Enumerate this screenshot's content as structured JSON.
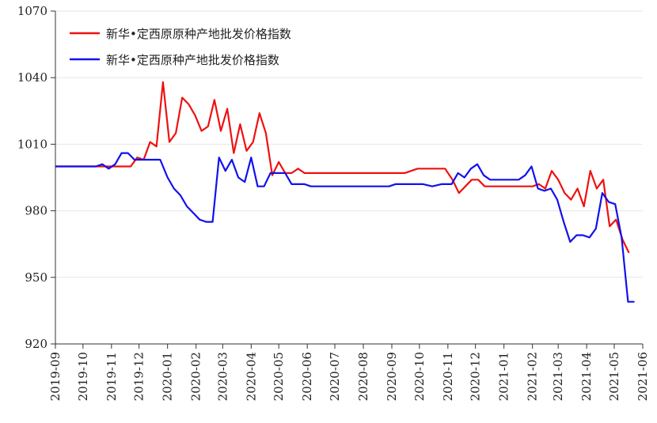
{
  "chart_data": {
    "type": "line",
    "title": "",
    "xlabel": "",
    "ylabel": "",
    "ylim": [
      920,
      1070
    ],
    "yticks": [
      920,
      950,
      980,
      1010,
      1040,
      1070
    ],
    "xlim": [
      "2019-09-01",
      "2021-06-01"
    ],
    "xticks": [
      "2019-09",
      "2019-10",
      "2019-11",
      "2019-12",
      "2020-01",
      "2020-02",
      "2020-03",
      "2020-04",
      "2020-05",
      "2020-06",
      "2020-07",
      "2020-08",
      "2020-09",
      "2020-10",
      "2020-11",
      "2020-12",
      "2021-01",
      "2021-02",
      "2021-03",
      "2021-04",
      "2021-05",
      "2021-06"
    ],
    "grid": "horizontal",
    "legend_position": "top-left",
    "series": [
      {
        "name": "新华•定西原原种产地批发价格指数",
        "color": "#ee1111",
        "points": [
          [
            "2019-09-01",
            1000
          ],
          [
            "2019-09-15",
            1000
          ],
          [
            "2019-10-01",
            1000
          ],
          [
            "2019-10-15",
            1000
          ],
          [
            "2019-11-01",
            1000
          ],
          [
            "2019-11-15",
            1000
          ],
          [
            "2019-11-22",
            1000
          ],
          [
            "2019-11-29",
            1004
          ],
          [
            "2019-12-06",
            1003
          ],
          [
            "2019-12-13",
            1011
          ],
          [
            "2019-12-20",
            1009
          ],
          [
            "2019-12-27",
            1038
          ],
          [
            "2020-01-03",
            1011
          ],
          [
            "2020-01-10",
            1015
          ],
          [
            "2020-01-17",
            1031
          ],
          [
            "2020-01-24",
            1028
          ],
          [
            "2020-01-31",
            1023
          ],
          [
            "2020-02-07",
            1016
          ],
          [
            "2020-02-14",
            1018
          ],
          [
            "2020-02-21",
            1030
          ],
          [
            "2020-02-28",
            1016
          ],
          [
            "2020-03-06",
            1026
          ],
          [
            "2020-03-13",
            1006
          ],
          [
            "2020-03-20",
            1019
          ],
          [
            "2020-03-27",
            1007
          ],
          [
            "2020-04-03",
            1011
          ],
          [
            "2020-04-10",
            1024
          ],
          [
            "2020-04-17",
            1015
          ],
          [
            "2020-04-24",
            996
          ],
          [
            "2020-05-01",
            1002
          ],
          [
            "2020-05-08",
            997
          ],
          [
            "2020-05-15",
            997
          ],
          [
            "2020-05-22",
            999
          ],
          [
            "2020-05-29",
            997
          ],
          [
            "2020-07-01",
            997
          ],
          [
            "2020-08-01",
            997
          ],
          [
            "2020-09-01",
            997
          ],
          [
            "2020-09-15",
            997
          ],
          [
            "2020-09-29",
            999
          ],
          [
            "2020-10-15",
            999
          ],
          [
            "2020-10-29",
            999
          ],
          [
            "2020-11-06",
            994
          ],
          [
            "2020-11-13",
            988
          ],
          [
            "2020-11-20",
            991
          ],
          [
            "2020-11-27",
            994
          ],
          [
            "2020-12-04",
            994
          ],
          [
            "2020-12-11",
            991
          ],
          [
            "2020-12-25",
            991
          ],
          [
            "2021-01-10",
            991
          ],
          [
            "2021-01-24",
            991
          ],
          [
            "2021-02-01",
            991
          ],
          [
            "2021-02-08",
            992
          ],
          [
            "2021-02-15",
            990
          ],
          [
            "2021-02-22",
            998
          ],
          [
            "2021-03-01",
            994
          ],
          [
            "2021-03-08",
            988
          ],
          [
            "2021-03-15",
            985
          ],
          [
            "2021-03-22",
            990
          ],
          [
            "2021-03-29",
            982
          ],
          [
            "2021-04-05",
            998
          ],
          [
            "2021-04-12",
            990
          ],
          [
            "2021-04-19",
            994
          ],
          [
            "2021-04-26",
            973
          ],
          [
            "2021-05-03",
            976
          ],
          [
            "2021-05-10",
            967
          ],
          [
            "2021-05-17",
            961
          ]
        ]
      },
      {
        "name": "新华•定西原种产地批发价格指数",
        "color": "#1111ee",
        "points": [
          [
            "2019-09-01",
            1000
          ],
          [
            "2019-09-15",
            1000
          ],
          [
            "2019-10-01",
            1000
          ],
          [
            "2019-10-15",
            1000
          ],
          [
            "2019-10-22",
            1001
          ],
          [
            "2019-10-29",
            999
          ],
          [
            "2019-11-05",
            1001
          ],
          [
            "2019-11-12",
            1006
          ],
          [
            "2019-11-19",
            1006
          ],
          [
            "2019-11-26",
            1003
          ],
          [
            "2019-12-10",
            1003
          ],
          [
            "2019-12-24",
            1003
          ],
          [
            "2020-01-01",
            995
          ],
          [
            "2020-01-08",
            990
          ],
          [
            "2020-01-15",
            987
          ],
          [
            "2020-01-22",
            982
          ],
          [
            "2020-01-29",
            979
          ],
          [
            "2020-02-05",
            976
          ],
          [
            "2020-02-12",
            975
          ],
          [
            "2020-02-19",
            975
          ],
          [
            "2020-02-26",
            1004
          ],
          [
            "2020-03-04",
            998
          ],
          [
            "2020-03-11",
            1003
          ],
          [
            "2020-03-18",
            995
          ],
          [
            "2020-03-25",
            993
          ],
          [
            "2020-04-01",
            1004
          ],
          [
            "2020-04-08",
            991
          ],
          [
            "2020-04-15",
            991
          ],
          [
            "2020-04-22",
            997
          ],
          [
            "2020-04-29",
            997
          ],
          [
            "2020-05-08",
            997
          ],
          [
            "2020-05-15",
            992
          ],
          [
            "2020-05-29",
            992
          ],
          [
            "2020-06-05",
            991
          ],
          [
            "2020-07-01",
            991
          ],
          [
            "2020-08-01",
            991
          ],
          [
            "2020-08-29",
            991
          ],
          [
            "2020-09-05",
            992
          ],
          [
            "2020-09-20",
            992
          ],
          [
            "2020-10-05",
            992
          ],
          [
            "2020-10-15",
            991
          ],
          [
            "2020-10-25",
            992
          ],
          [
            "2020-11-05",
            992
          ],
          [
            "2020-11-12",
            997
          ],
          [
            "2020-11-19",
            995
          ],
          [
            "2020-11-26",
            999
          ],
          [
            "2020-12-03",
            1001
          ],
          [
            "2020-12-10",
            996
          ],
          [
            "2020-12-17",
            994
          ],
          [
            "2020-12-24",
            994
          ],
          [
            "2021-01-01",
            994
          ],
          [
            "2021-01-10",
            994
          ],
          [
            "2021-01-17",
            994
          ],
          [
            "2021-01-24",
            996
          ],
          [
            "2021-01-31",
            1000
          ],
          [
            "2021-02-07",
            990
          ],
          [
            "2021-02-14",
            989
          ],
          [
            "2021-02-21",
            990
          ],
          [
            "2021-02-28",
            985
          ],
          [
            "2021-03-07",
            975
          ],
          [
            "2021-03-14",
            966
          ],
          [
            "2021-03-21",
            969
          ],
          [
            "2021-03-28",
            969
          ],
          [
            "2021-04-04",
            968
          ],
          [
            "2021-04-11",
            972
          ],
          [
            "2021-04-18",
            988
          ],
          [
            "2021-04-25",
            984
          ],
          [
            "2021-05-02",
            983
          ],
          [
            "2021-05-09",
            968
          ],
          [
            "2021-05-16",
            939
          ],
          [
            "2021-05-23",
            939
          ]
        ]
      }
    ]
  }
}
